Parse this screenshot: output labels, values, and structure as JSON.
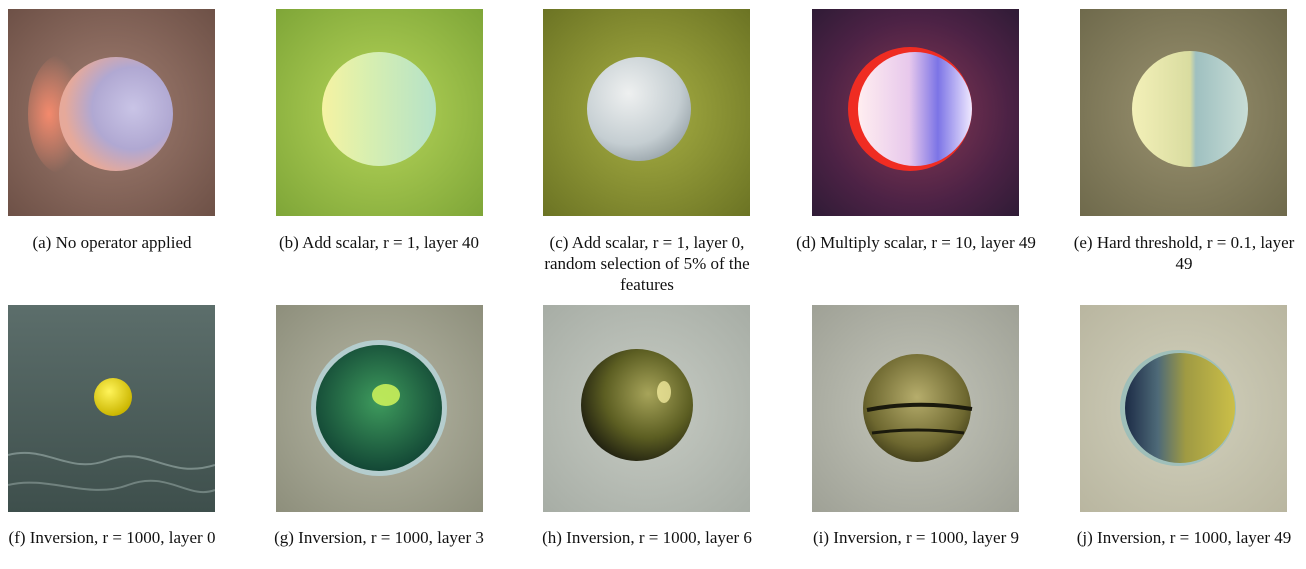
{
  "figure": {
    "panels": [
      {
        "id": "a",
        "caption": "(a) No operator applied"
      },
      {
        "id": "b",
        "caption": "(b) Add scalar, r = 1, layer 40"
      },
      {
        "id": "c",
        "caption": "(c) Add scalar, r = 1, layer 0, random selection of 5% of the features"
      },
      {
        "id": "d",
        "caption": "(d) Multiply scalar, r = 10, layer 49"
      },
      {
        "id": "e",
        "caption": "(e) Hard threshold, r = 0.1, layer 49"
      },
      {
        "id": "f",
        "caption": "(f) Inversion, r = 1000, layer 0"
      },
      {
        "id": "g",
        "caption": "(g) Inversion, r = 1000, layer 3"
      },
      {
        "id": "h",
        "caption": "(h) Inversion, r = 1000, layer 6"
      },
      {
        "id": "i",
        "caption": "(i) Inversion, r = 1000, layer 9"
      },
      {
        "id": "j",
        "caption": "(j) Inversion, r = 1000, layer 49"
      }
    ]
  }
}
